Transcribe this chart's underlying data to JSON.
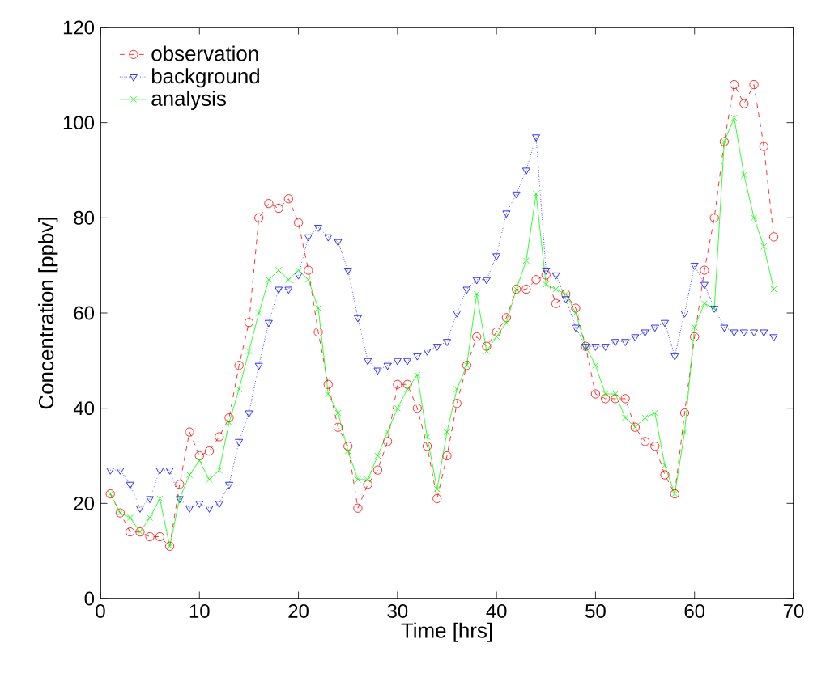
{
  "chart_data": {
    "type": "line",
    "xlabel": "Time [hrs]",
    "ylabel": "Concentration [ppbv]",
    "x": [
      1,
      2,
      3,
      4,
      5,
      6,
      7,
      8,
      9,
      10,
      11,
      12,
      13,
      14,
      15,
      16,
      17,
      18,
      19,
      20,
      21,
      22,
      23,
      24,
      25,
      26,
      27,
      28,
      29,
      30,
      31,
      32,
      33,
      34,
      35,
      36,
      37,
      38,
      39,
      40,
      41,
      42,
      43,
      44,
      45,
      46,
      47,
      48,
      49,
      50,
      51,
      52,
      53,
      54,
      55,
      56,
      57,
      58,
      59,
      60,
      61,
      62,
      63,
      64,
      65,
      66,
      67,
      68
    ],
    "series": [
      {
        "name": "observation",
        "color": "#ff0000",
        "marker": "circle",
        "line_style": "dashed",
        "values": [
          22,
          18,
          14,
          14,
          13,
          13,
          11,
          24,
          35,
          30,
          31,
          34,
          38,
          49,
          58,
          80,
          83,
          82,
          84,
          79,
          69,
          56,
          45,
          36,
          32,
          19,
          24,
          27,
          33,
          45,
          45,
          40,
          32,
          21,
          30,
          41,
          49,
          55,
          53,
          56,
          59,
          65,
          65,
          67,
          68,
          62,
          64,
          61,
          53,
          43,
          42,
          42,
          42,
          36,
          33,
          32,
          26,
          22,
          39,
          55,
          69,
          80,
          96,
          108,
          104,
          108,
          95,
          76
        ]
      },
      {
        "name": "background",
        "color": "#0000ff",
        "marker": "triangle",
        "line_style": "dotted",
        "values": [
          27,
          27,
          24,
          19,
          21,
          27,
          27,
          21,
          19,
          20,
          19,
          20,
          24,
          33,
          39,
          49,
          58,
          65,
          65,
          68,
          76,
          78,
          76,
          75,
          69,
          59,
          50,
          48,
          49,
          50,
          50,
          51,
          52,
          53,
          54,
          60,
          65,
          67,
          67,
          72,
          81,
          85,
          90,
          97,
          69,
          68,
          63,
          57,
          53,
          53,
          53,
          54,
          54,
          55,
          56,
          57,
          58,
          51,
          60,
          70,
          66,
          61,
          57,
          56,
          56,
          56,
          56,
          55
        ]
      },
      {
        "name": "analysis",
        "color": "#00ff00",
        "marker": "cross",
        "line_style": "solid",
        "values": [
          22,
          18,
          17,
          14,
          17,
          21,
          11,
          21,
          26,
          29,
          25,
          27,
          37,
          44,
          52,
          60,
          67,
          69,
          67,
          69,
          67,
          61,
          43,
          39,
          31,
          25,
          25,
          30,
          35,
          40,
          44,
          47,
          34,
          23,
          35,
          44,
          49,
          64,
          52,
          55,
          58,
          65,
          71,
          85,
          66,
          65,
          64,
          60,
          53,
          49,
          43,
          43,
          38,
          36,
          38,
          39,
          28,
          22,
          35,
          57,
          62,
          61,
          96,
          101,
          89,
          80,
          74,
          65
        ]
      }
    ],
    "xlim": [
      0,
      70
    ],
    "ylim": [
      0,
      120
    ],
    "xticks": [
      0,
      10,
      20,
      30,
      40,
      50,
      60,
      70
    ],
    "yticks": [
      0,
      20,
      40,
      60,
      80,
      100,
      120
    ],
    "legend": "top left",
    "grid": false
  }
}
